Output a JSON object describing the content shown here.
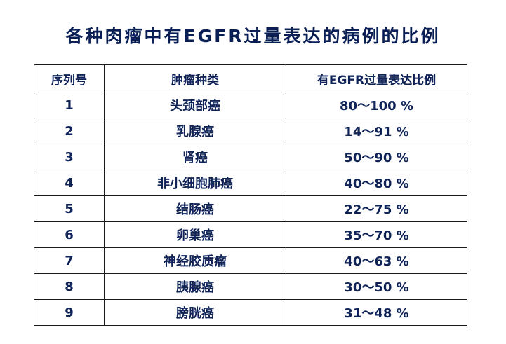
{
  "title": "各种肉瘤中有EGFR过量表达的病例的比例",
  "table": {
    "headers": [
      "序列号",
      "肿瘤种类",
      "有EGFR过量表达比例"
    ],
    "rows": [
      {
        "no": "1",
        "type": "头颈部癌",
        "ratio": "80～100 %"
      },
      {
        "no": "2",
        "type": "乳腺癌",
        "ratio": "14～91 %"
      },
      {
        "no": "3",
        "type": "肾癌",
        "ratio": "50～90 %"
      },
      {
        "no": "4",
        "type": "非小细胞肺癌",
        "ratio": "40～80 %"
      },
      {
        "no": "5",
        "type": "结肠癌",
        "ratio": "22～75 %"
      },
      {
        "no": "6",
        "type": "卵巢癌",
        "ratio": "35～70 %"
      },
      {
        "no": "7",
        "type": "神经胶质瘤",
        "ratio": "40～63 %"
      },
      {
        "no": "8",
        "type": "胰腺癌",
        "ratio": "30～50 %"
      },
      {
        "no": "9",
        "type": "膀胱癌",
        "ratio": "31～48 %"
      }
    ]
  }
}
